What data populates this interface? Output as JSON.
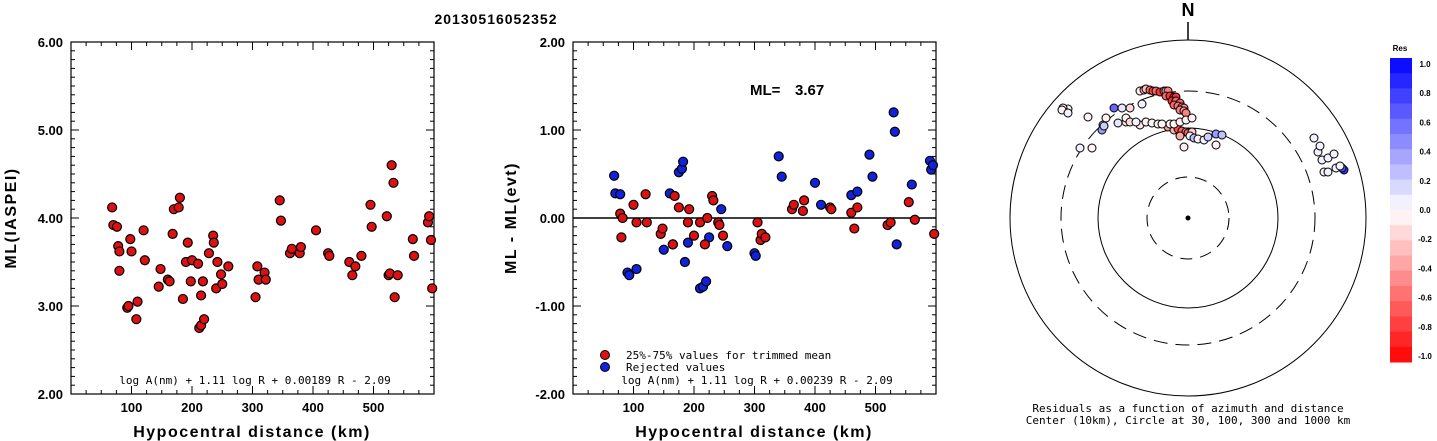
{
  "title": "20130516052352",
  "chart_data": [
    {
      "type": "scatter",
      "ylabel": "ML(IASPEI)",
      "xlabel": "Hypocentral distance (km)",
      "xlim": [
        0,
        600
      ],
      "ylim": [
        2.0,
        6.0
      ],
      "xticks": [
        100,
        200,
        300,
        400,
        500
      ],
      "yticks": [
        "2.00",
        "3.00",
        "4.00",
        "5.00",
        "6.00"
      ],
      "formula": "log A(nm) + 1.11 log R + 0.00189 R - 2.09",
      "marker_color": "#dd1111",
      "points": [
        [
          68,
          4.12
        ],
        [
          70,
          3.92
        ],
        [
          76,
          3.9
        ],
        [
          78,
          3.68
        ],
        [
          80,
          3.62
        ],
        [
          80,
          3.4
        ],
        [
          93,
          2.98
        ],
        [
          95,
          3.0
        ],
        [
          98,
          3.76
        ],
        [
          100,
          3.62
        ],
        [
          108,
          2.85
        ],
        [
          110,
          3.05
        ],
        [
          120,
          3.86
        ],
        [
          122,
          3.52
        ],
        [
          145,
          3.22
        ],
        [
          148,
          3.42
        ],
        [
          160,
          3.3
        ],
        [
          163,
          3.28
        ],
        [
          168,
          3.82
        ],
        [
          170,
          4.1
        ],
        [
          178,
          4.12
        ],
        [
          180,
          4.23
        ],
        [
          185,
          3.08
        ],
        [
          190,
          3.5
        ],
        [
          193,
          3.72
        ],
        [
          198,
          3.28
        ],
        [
          200,
          3.52
        ],
        [
          210,
          3.48
        ],
        [
          212,
          2.75
        ],
        [
          215,
          2.78
        ],
        [
          215,
          3.12
        ],
        [
          218,
          3.28
        ],
        [
          220,
          2.85
        ],
        [
          228,
          3.6
        ],
        [
          235,
          3.8
        ],
        [
          236,
          3.72
        ],
        [
          240,
          3.2
        ],
        [
          242,
          3.5
        ],
        [
          248,
          3.36
        ],
        [
          250,
          3.25
        ],
        [
          260,
          3.45
        ],
        [
          305,
          3.1
        ],
        [
          308,
          3.45
        ],
        [
          310,
          3.3
        ],
        [
          320,
          3.38
        ],
        [
          322,
          3.3
        ],
        [
          345,
          4.2
        ],
        [
          347,
          3.97
        ],
        [
          362,
          3.6
        ],
        [
          365,
          3.65
        ],
        [
          378,
          3.6
        ],
        [
          380,
          3.67
        ],
        [
          405,
          3.86
        ],
        [
          425,
          3.6
        ],
        [
          427,
          3.57
        ],
        [
          460,
          3.5
        ],
        [
          465,
          3.35
        ],
        [
          470,
          3.45
        ],
        [
          480,
          3.57
        ],
        [
          495,
          4.15
        ],
        [
          497,
          3.9
        ],
        [
          522,
          4.02
        ],
        [
          525,
          3.35
        ],
        [
          527,
          3.37
        ],
        [
          530,
          4.6
        ],
        [
          533,
          4.4
        ],
        [
          535,
          3.1
        ],
        [
          540,
          3.35
        ],
        [
          565,
          3.76
        ],
        [
          567,
          3.57
        ],
        [
          590,
          3.95
        ],
        [
          592,
          4.02
        ],
        [
          595,
          3.75
        ],
        [
          597,
          3.2
        ]
      ]
    },
    {
      "type": "scatter",
      "ylabel": "ML - ML(evt)",
      "xlabel": "Hypocentral distance (km)",
      "xlim": [
        0,
        600
      ],
      "ylim": [
        -2.0,
        2.0
      ],
      "xticks": [
        100,
        200,
        300,
        400,
        500
      ],
      "yticks": [
        "-2.00",
        "-1.00",
        "0.00",
        "1.00",
        "2.00"
      ],
      "ml_label": "ML=",
      "ml_value": "3.67",
      "legend": [
        {
          "label": "25%-75% values for trimmed mean",
          "color": "#dd1111"
        },
        {
          "label": "Rejected values",
          "color": "#1122dd"
        }
      ],
      "formula": "log A(nm) + 1.11 log R + 0.00239 R - 2.09",
      "accepted": [
        [
          78,
          0.05
        ],
        [
          80,
          -0.22
        ],
        [
          82,
          0.0
        ],
        [
          100,
          0.15
        ],
        [
          105,
          -0.05
        ],
        [
          120,
          0.27
        ],
        [
          122,
          -0.05
        ],
        [
          145,
          -0.18
        ],
        [
          148,
          -0.12
        ],
        [
          165,
          -0.3
        ],
        [
          168,
          0.25
        ],
        [
          175,
          0.12
        ],
        [
          190,
          -0.05
        ],
        [
          192,
          0.1
        ],
        [
          200,
          -0.2
        ],
        [
          210,
          -0.05
        ],
        [
          218,
          -0.3
        ],
        [
          222,
          0.0
        ],
        [
          230,
          0.25
        ],
        [
          232,
          0.2
        ],
        [
          240,
          -0.05
        ],
        [
          242,
          -0.08
        ],
        [
          248,
          -0.2
        ],
        [
          305,
          -0.05
        ],
        [
          310,
          -0.25
        ],
        [
          312,
          -0.18
        ],
        [
          318,
          -0.22
        ],
        [
          362,
          0.1
        ],
        [
          365,
          0.15
        ],
        [
          380,
          0.08
        ],
        [
          382,
          0.2
        ],
        [
          425,
          0.12
        ],
        [
          427,
          0.1
        ],
        [
          460,
          0.06
        ],
        [
          465,
          -0.12
        ],
        [
          470,
          0.12
        ],
        [
          520,
          -0.08
        ],
        [
          525,
          -0.05
        ],
        [
          555,
          0.18
        ],
        [
          565,
          -0.02
        ],
        [
          597,
          -0.18
        ]
      ],
      "rejected": [
        [
          68,
          0.48
        ],
        [
          70,
          0.28
        ],
        [
          78,
          0.27
        ],
        [
          90,
          -0.62
        ],
        [
          93,
          -0.65
        ],
        [
          105,
          -0.58
        ],
        [
          150,
          -0.36
        ],
        [
          160,
          0.28
        ],
        [
          165,
          -0.3
        ],
        [
          175,
          0.52
        ],
        [
          180,
          0.56
        ],
        [
          182,
          0.64
        ],
        [
          185,
          -0.5
        ],
        [
          190,
          -0.28
        ],
        [
          210,
          -0.8
        ],
        [
          215,
          -0.78
        ],
        [
          220,
          -0.72
        ],
        [
          225,
          -0.22
        ],
        [
          245,
          0.1
        ],
        [
          255,
          -0.32
        ],
        [
          300,
          -0.4
        ],
        [
          302,
          -0.43
        ],
        [
          340,
          0.7
        ],
        [
          345,
          0.47
        ],
        [
          400,
          0.4
        ],
        [
          410,
          0.15
        ],
        [
          460,
          0.26
        ],
        [
          470,
          0.3
        ],
        [
          490,
          0.72
        ],
        [
          495,
          0.47
        ],
        [
          530,
          1.2
        ],
        [
          532,
          0.98
        ],
        [
          535,
          -0.3
        ],
        [
          560,
          0.38
        ],
        [
          590,
          0.65
        ],
        [
          592,
          0.55
        ],
        [
          595,
          0.6
        ]
      ]
    },
    {
      "type": "scatter",
      "subtype": "polar",
      "north_label": "N",
      "caption_line1": "Residuals as a function of azimuth and distance",
      "caption_line2": "Center (10km), Circle at 30, 100, 300 and 1000 km",
      "colorbar_title": "Res",
      "colorbar_ticks": [
        "1.0",
        "0.8",
        "0.6",
        "0.4",
        "0.2",
        "0.0",
        "-0.2",
        "-0.4",
        "-0.6",
        "-0.8",
        "-1.0"
      ],
      "stations": [
        [
          -48,
          -127,
          -0.05
        ],
        [
          -44,
          -128,
          -0.3
        ],
        [
          -42,
          -129,
          -0.25
        ],
        [
          -38,
          -128,
          -0.6
        ],
        [
          -35,
          -127,
          -0.7
        ],
        [
          -32,
          -127,
          -0.6
        ],
        [
          -28,
          -126,
          -0.8
        ],
        [
          -24,
          -127,
          -0.7
        ],
        [
          -22,
          -127,
          0.05
        ],
        [
          -20,
          -127,
          -0.5
        ],
        [
          -22,
          -122,
          -0.6
        ],
        [
          -18,
          -122,
          -0.8
        ],
        [
          -14,
          -121,
          -0.8
        ],
        [
          -12,
          -121,
          -0.8
        ],
        [
          -16,
          -117,
          -0.8
        ],
        [
          -12,
          -117,
          -0.6
        ],
        [
          -8,
          -115,
          -0.6
        ],
        [
          -14,
          -113,
          -0.6
        ],
        [
          -10,
          -112,
          -0.55
        ],
        [
          -6,
          -111,
          -0.5
        ],
        [
          -4,
          -110,
          -0.45
        ],
        [
          -8,
          -108,
          -0.5
        ],
        [
          -4,
          -107,
          -0.4
        ],
        [
          -2,
          -105,
          -0.5
        ],
        [
          -20,
          -91,
          -0.4
        ],
        [
          -14,
          -88,
          -0.3
        ],
        [
          -10,
          -89,
          -0.7
        ],
        [
          -6,
          -87,
          -0.6
        ],
        [
          -2,
          -86,
          -0.5
        ],
        [
          0,
          -85,
          -0.6
        ],
        [
          4,
          -86,
          -0.2
        ],
        [
          -8,
          -82,
          -0.35
        ],
        [
          2,
          -82,
          0.05
        ],
        [
          6,
          -80,
          0.25
        ],
        [
          10,
          -79,
          -0.05
        ],
        [
          16,
          -78,
          0.05
        ],
        [
          20,
          -81,
          0.2
        ],
        [
          28,
          -73,
          -0.05
        ],
        [
          28,
          -84,
          0.4
        ],
        [
          34,
          -83,
          0.25
        ],
        [
          -108,
          -70,
          0.05
        ],
        [
          -4,
          -71,
          -0.05
        ],
        [
          -96,
          -70,
          -0.05
        ],
        [
          -48,
          -93,
          -0.1
        ],
        [
          -85,
          -93,
          -0.05
        ],
        [
          -100,
          -101,
          -0.05
        ],
        [
          -120,
          -109,
          -0.05
        ],
        [
          -125,
          -110,
          -0.1
        ],
        [
          -126,
          -108,
          -0.05
        ],
        [
          -120,
          -105,
          0.05
        ],
        [
          -46,
          -114,
          0.05
        ],
        [
          156,
          -48,
          0.8
        ],
        [
          154,
          -50,
          0.7
        ],
        [
          -82,
          -100,
          -0.05
        ],
        [
          -74,
          -110,
          0.6
        ],
        [
          -66,
          -110,
          0.1
        ],
        [
          -58,
          -110,
          -0.15
        ],
        [
          -62,
          -96,
          -0.1
        ],
        [
          -86,
          -88,
          0.4
        ],
        [
          -84,
          -92,
          0.2
        ],
        [
          -62,
          -100,
          -0.05
        ],
        [
          -70,
          -95,
          0.1
        ],
        [
          -58,
          -96,
          -0.15
        ],
        [
          -52,
          -96,
          0.05
        ],
        [
          -42,
          -96,
          -0.05
        ],
        [
          -36,
          -95,
          -0.05
        ],
        [
          -30,
          -94,
          -0.05
        ],
        [
          -26,
          -94,
          -0.05
        ],
        [
          -18,
          -94,
          -0.05
        ],
        [
          -14,
          -94,
          -0.05
        ],
        [
          -8,
          -96,
          -0.05
        ],
        [
          -2,
          -98,
          -0.05
        ],
        [
          4,
          -100,
          -0.05
        ],
        [
          136,
          -46,
          -0.05
        ],
        [
          140,
          -46,
          0.05
        ],
        [
          148,
          -50,
          0.05
        ],
        [
          152,
          -52,
          0.05
        ],
        [
          134,
          -58,
          0.05
        ],
        [
          140,
          -60,
          0.05
        ],
        [
          146,
          -64,
          0.05
        ],
        [
          130,
          -66,
          0.05
        ],
        [
          132,
          -72,
          0.05
        ],
        [
          126,
          -80,
          0.05
        ]
      ]
    }
  ]
}
